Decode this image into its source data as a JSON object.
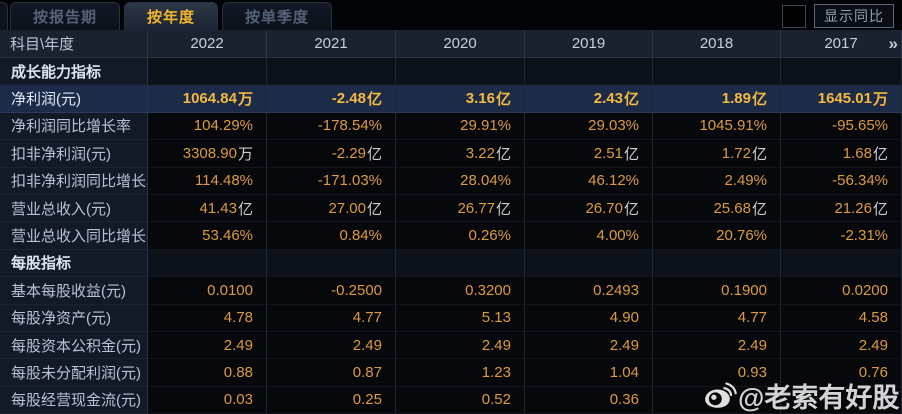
{
  "tabs": [
    {
      "label": "按报告期",
      "active": false
    },
    {
      "label": "按年度",
      "active": true
    },
    {
      "label": "按单季度",
      "active": false
    }
  ],
  "show_yoy": {
    "label": "显示同比",
    "checked": false
  },
  "table": {
    "corner_label": "科目\\年度",
    "years": [
      "2022",
      "2021",
      "2020",
      "2019",
      "2018",
      "2017"
    ],
    "more_years_icon": "»",
    "rows": [
      {
        "type": "section",
        "label": "成长能力指标"
      },
      {
        "type": "data",
        "label": "净利润(元)",
        "highlight": true,
        "values": [
          {
            "v": "1064.84",
            "u": "万"
          },
          {
            "v": "-2.48",
            "u": "亿"
          },
          {
            "v": "3.16",
            "u": "亿"
          },
          {
            "v": "2.43",
            "u": "亿"
          },
          {
            "v": "1.89",
            "u": "亿"
          },
          {
            "v": "1645.01",
            "u": "万"
          }
        ]
      },
      {
        "type": "data",
        "label": "净利润同比增长率",
        "values": [
          {
            "v": "104.29%"
          },
          {
            "v": "-178.54%"
          },
          {
            "v": "29.91%"
          },
          {
            "v": "29.03%"
          },
          {
            "v": "1045.91%"
          },
          {
            "v": "-95.65%"
          }
        ]
      },
      {
        "type": "data",
        "label": "扣非净利润(元)",
        "values": [
          {
            "v": "3308.90",
            "u": "万"
          },
          {
            "v": "-2.29",
            "u": "亿"
          },
          {
            "v": "3.22",
            "u": "亿"
          },
          {
            "v": "2.51",
            "u": "亿"
          },
          {
            "v": "1.72",
            "u": "亿"
          },
          {
            "v": "1.68",
            "u": "亿"
          }
        ]
      },
      {
        "type": "data",
        "label": "扣非净利润同比增长率",
        "values": [
          {
            "v": "114.48%"
          },
          {
            "v": "-171.03%"
          },
          {
            "v": "28.04%"
          },
          {
            "v": "46.12%"
          },
          {
            "v": "2.49%"
          },
          {
            "v": "-56.34%"
          }
        ]
      },
      {
        "type": "data",
        "label": "营业总收入(元)",
        "values": [
          {
            "v": "41.43",
            "u": "亿"
          },
          {
            "v": "27.00",
            "u": "亿"
          },
          {
            "v": "26.77",
            "u": "亿"
          },
          {
            "v": "26.70",
            "u": "亿"
          },
          {
            "v": "25.68",
            "u": "亿"
          },
          {
            "v": "21.26",
            "u": "亿"
          }
        ]
      },
      {
        "type": "data",
        "label": "营业总收入同比增长率",
        "values": [
          {
            "v": "53.46%"
          },
          {
            "v": "0.84%"
          },
          {
            "v": "0.26%"
          },
          {
            "v": "4.00%"
          },
          {
            "v": "20.76%"
          },
          {
            "v": "-2.31%"
          }
        ]
      },
      {
        "type": "section",
        "label": "每股指标"
      },
      {
        "type": "data",
        "label": "基本每股收益(元)",
        "values": [
          {
            "v": "0.0100"
          },
          {
            "v": "-0.2500"
          },
          {
            "v": "0.3200"
          },
          {
            "v": "0.2493"
          },
          {
            "v": "0.1900"
          },
          {
            "v": "0.0200"
          }
        ]
      },
      {
        "type": "data",
        "label": "每股净资产(元)",
        "values": [
          {
            "v": "4.78"
          },
          {
            "v": "4.77"
          },
          {
            "v": "5.13"
          },
          {
            "v": "4.90"
          },
          {
            "v": "4.77"
          },
          {
            "v": "4.58"
          }
        ]
      },
      {
        "type": "data",
        "label": "每股资本公积金(元)",
        "values": [
          {
            "v": "2.49"
          },
          {
            "v": "2.49"
          },
          {
            "v": "2.49"
          },
          {
            "v": "2.49"
          },
          {
            "v": "2.49"
          },
          {
            "v": "2.49"
          }
        ]
      },
      {
        "type": "data",
        "label": "每股未分配利润(元)",
        "values": [
          {
            "v": "0.88"
          },
          {
            "v": "0.87"
          },
          {
            "v": "1.23"
          },
          {
            "v": "1.04"
          },
          {
            "v": "0.93"
          },
          {
            "v": "0.76"
          }
        ]
      },
      {
        "type": "data",
        "label": "每股经营现金流(元)",
        "values": [
          {
            "v": "0.03"
          },
          {
            "v": "0.25"
          },
          {
            "v": "0.52"
          },
          {
            "v": "0.36"
          },
          {
            "v": ""
          },
          {
            "v": ""
          }
        ]
      }
    ]
  },
  "watermark": {
    "text": "@老索有好股",
    "icon": "weibo-icon"
  },
  "colors": {
    "value_orange": "#dc9a3f",
    "highlight_value": "#f6b93f",
    "highlight_row_bg": "#1c2b48",
    "tab_active_text": "#f2b52c",
    "header_bg": "#1a2230",
    "label_col_bg": "#131a27"
  }
}
